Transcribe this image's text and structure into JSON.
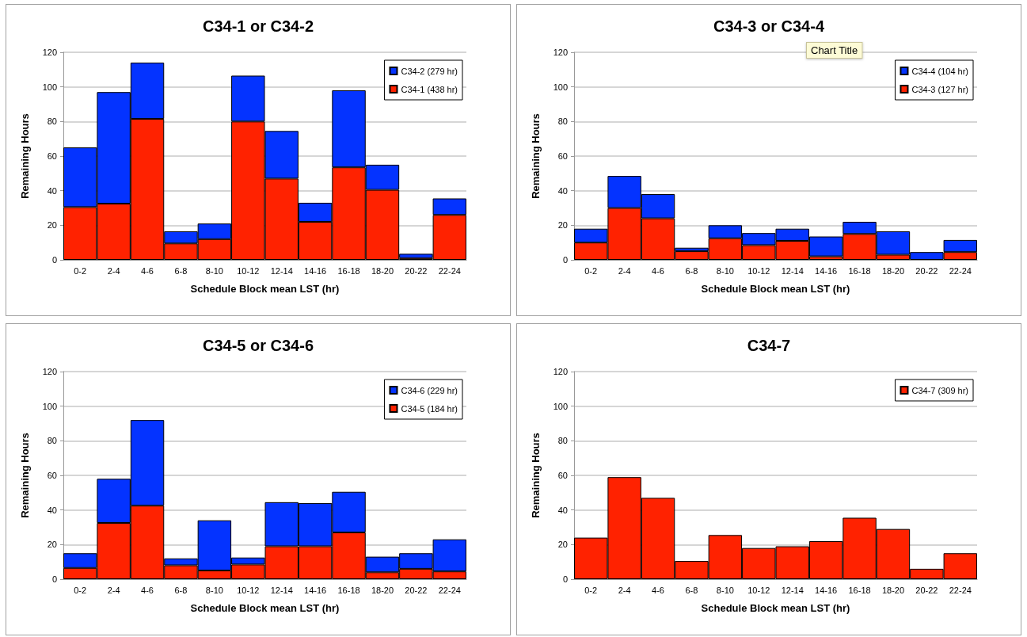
{
  "chart_data": [
    {
      "type": "bar",
      "title": "C34-1 or C34-2",
      "xlabel": "Schedule Block mean LST (hr)",
      "ylabel": "Remaining Hours",
      "categories": [
        "0-2",
        "2-4",
        "4-6",
        "6-8",
        "8-10",
        "10-12",
        "12-14",
        "14-16",
        "16-18",
        "18-20",
        "20-22",
        "22-24"
      ],
      "stacked": true,
      "series": [
        {
          "name": "C34-1 (438 hr)",
          "color": "#ff2200",
          "values": [
            30.5,
            32.5,
            81.5,
            9.5,
            12,
            80,
            47,
            22,
            53.5,
            40.5,
            1,
            26
          ]
        },
        {
          "name": "C34-2 (279 hr)",
          "color": "#0433ff",
          "values": [
            34.5,
            64.5,
            32.5,
            7,
            9,
            26.5,
            27.5,
            11,
            44.5,
            14.5,
            2.5,
            9.5
          ]
        }
      ],
      "ylim": [
        0,
        120
      ],
      "yticks": [
        0,
        20,
        40,
        60,
        80,
        100,
        120
      ],
      "grid": "y",
      "legend": "top right"
    },
    {
      "type": "bar",
      "title": "C34-3 or C34-4",
      "xlabel": "Schedule Block mean LST (hr)",
      "ylabel": "Remaining Hours",
      "annotations": [
        "Chart Title"
      ],
      "categories": [
        "0-2",
        "2-4",
        "4-6",
        "6-8",
        "8-10",
        "10-12",
        "12-14",
        "14-16",
        "16-18",
        "18-20",
        "20-22",
        "22-24"
      ],
      "stacked": true,
      "series": [
        {
          "name": "C34-3 (127 hr)",
          "color": "#ff2200",
          "values": [
            10,
            30,
            24,
            5,
            12.5,
            8.5,
            11,
            2,
            15,
            3,
            null,
            4.5
          ]
        },
        {
          "name": "C34-4 (104 hr)",
          "color": "#0433ff",
          "values": [
            8,
            18.5,
            14,
            2,
            7.5,
            7,
            7,
            11.5,
            7,
            13.5,
            4.5,
            7
          ]
        }
      ],
      "ylim": [
        0,
        120
      ],
      "yticks": [
        0,
        20,
        40,
        60,
        80,
        100,
        120
      ],
      "grid": "y",
      "legend": "top right"
    },
    {
      "type": "bar",
      "title": "C34-5 or C34-6",
      "xlabel": "Schedule Block mean LST (hr)",
      "ylabel": "Remaining Hours",
      "categories": [
        "0-2",
        "2-4",
        "4-6",
        "6-8",
        "8-10",
        "10-12",
        "12-14",
        "14-16",
        "16-18",
        "18-20",
        "20-22",
        "22-24"
      ],
      "stacked": true,
      "series": [
        {
          "name": "C34-5 (184 hr)",
          "color": "#ff2200",
          "values": [
            6.5,
            32.5,
            42.5,
            8,
            5,
            8.5,
            19,
            19,
            27,
            4,
            6,
            4.5
          ]
        },
        {
          "name": "C34-6 (229 hr)",
          "color": "#0433ff",
          "values": [
            8.5,
            25.5,
            49.5,
            4,
            29,
            4,
            25.5,
            25,
            23.5,
            9,
            9,
            18.5
          ]
        }
      ],
      "ylim": [
        0,
        120
      ],
      "yticks": [
        0,
        20,
        40,
        60,
        80,
        100,
        120
      ],
      "grid": "y",
      "legend": "top right"
    },
    {
      "type": "bar",
      "title": "C34-7",
      "xlabel": "Schedule Block mean LST (hr)",
      "ylabel": "Remaining Hours",
      "categories": [
        "0-2",
        "2-4",
        "4-6",
        "6-8",
        "8-10",
        "10-12",
        "12-14",
        "14-16",
        "16-18",
        "18-20",
        "20-22",
        "22-24"
      ],
      "series": [
        {
          "name": "C34-7 (309 hr)",
          "color": "#ff2200",
          "values": [
            24,
            59,
            47,
            10.5,
            25.5,
            18,
            19,
            22,
            35.5,
            29,
            6,
            15
          ]
        }
      ],
      "ylim": [
        0,
        120
      ],
      "yticks": [
        0,
        20,
        40,
        60,
        80,
        100,
        120
      ],
      "grid": "y",
      "legend": "top right"
    }
  ]
}
